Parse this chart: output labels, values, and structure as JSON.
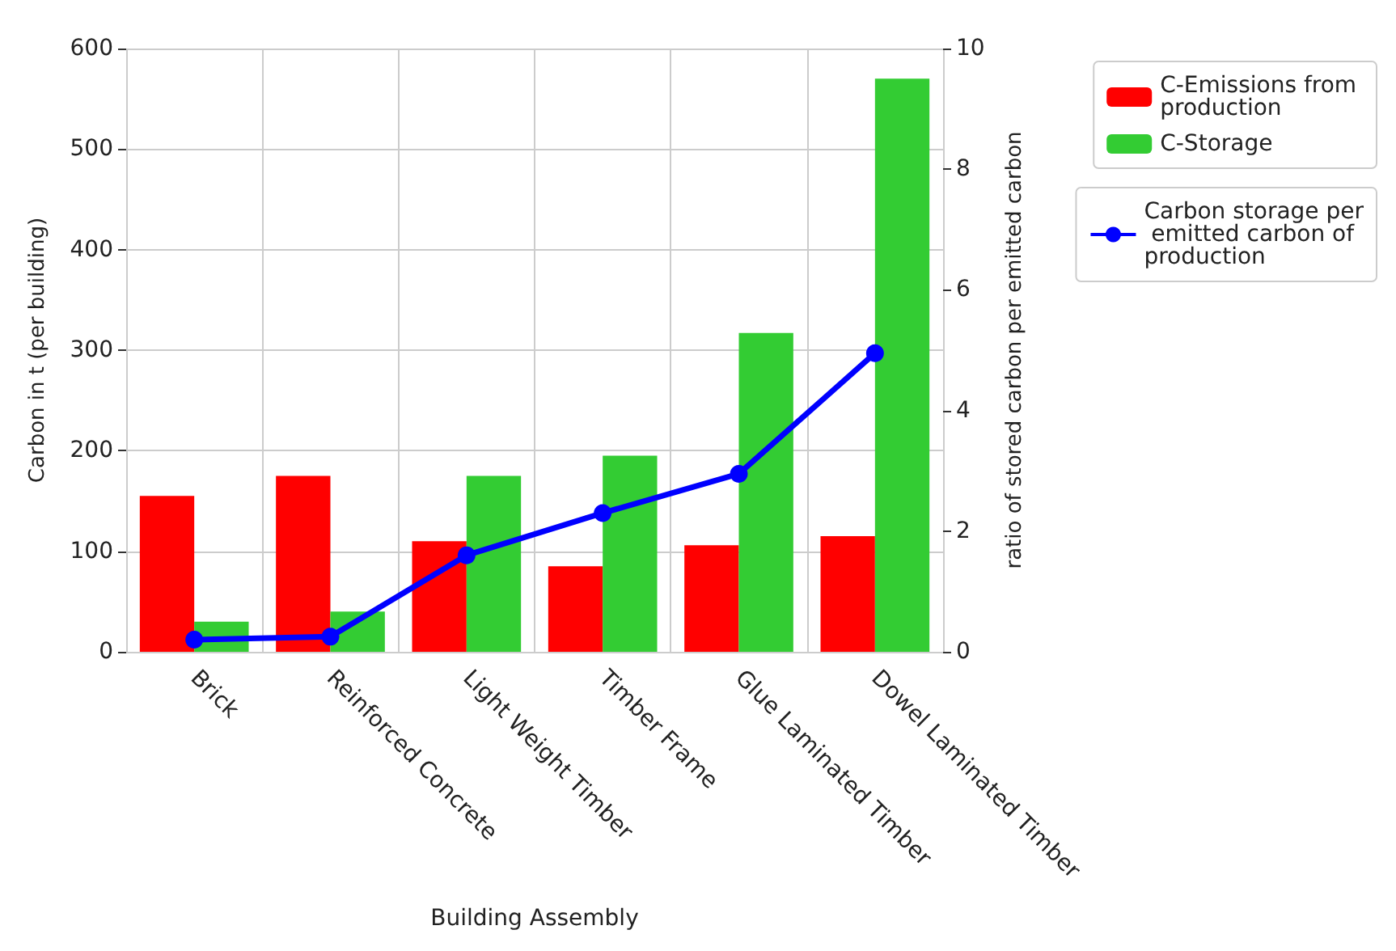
{
  "chart_data": {
    "type": "bar",
    "xlabel": "Building Assembly",
    "ylabel": "Carbon in t (per building)",
    "y2label": "ratio of stored carbon per emitted carbon",
    "categories": [
      "Brick",
      "Reinforced Concrete",
      "Light Weight Timber",
      "Timber Frame",
      "Glue Laminated Timber",
      "Dowel Laminated Timber"
    ],
    "series": [
      {
        "name": "C-Emissions from production",
        "color": "#ff0000",
        "values": [
          155,
          175,
          110,
          85,
          106,
          115
        ]
      },
      {
        "name": "C-Storage",
        "color": "#33cc33",
        "values": [
          30,
          40,
          175,
          195,
          317,
          570
        ]
      },
      {
        "name": "Carbon storage per emitted carbon of production",
        "type": "line",
        "axis": "y2",
        "color": "#0000ff",
        "marker": "circle",
        "values": [
          0.2,
          0.25,
          1.6,
          2.3,
          2.95,
          4.95
        ]
      }
    ],
    "ylim": [
      0,
      600
    ],
    "yticks": [
      0,
      100,
      200,
      300,
      400,
      500,
      600
    ],
    "y2lim": [
      0,
      10
    ],
    "y2ticks": [
      0,
      2,
      4,
      6,
      8,
      10
    ],
    "grid": true,
    "legend": "top right"
  }
}
